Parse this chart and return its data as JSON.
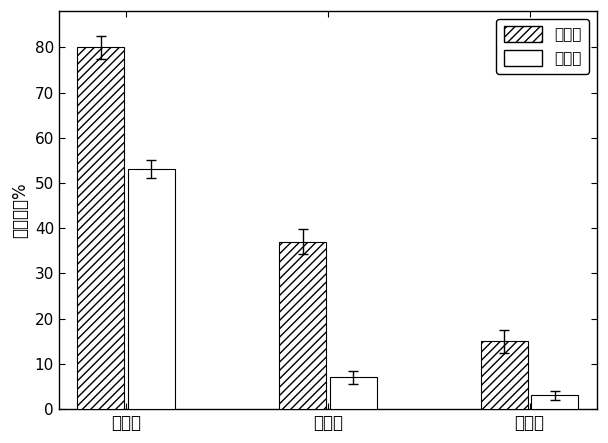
{
  "categories": [
    "透析法",
    "超声法",
    "搅拌法"
  ],
  "encapsulation_rate": [
    80,
    37,
    15
  ],
  "encapsulation_err": [
    2.5,
    2.8,
    2.5
  ],
  "drug_loading_rate": [
    53,
    7,
    3
  ],
  "drug_loading_err": [
    2.0,
    1.5,
    1.0
  ],
  "ylabel": "测定含量%",
  "ylim": [
    0,
    88
  ],
  "yticks": [
    0,
    10,
    20,
    30,
    40,
    50,
    60,
    70,
    80
  ],
  "legend_labels": [
    "包封率",
    "载药率"
  ],
  "bar_width": 0.28,
  "hatch_pattern": "////",
  "encapsulation_color": "#ffffff",
  "drug_loading_color": "#ffffff",
  "edge_color": "#000000",
  "background_color": "#ffffff",
  "figsize": [
    6.08,
    4.43
  ],
  "dpi": 100
}
